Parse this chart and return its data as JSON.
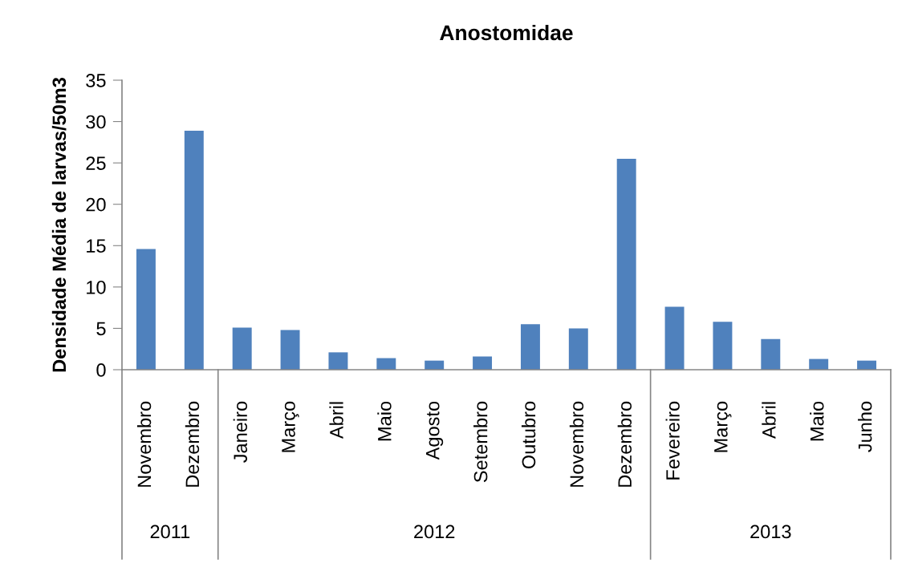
{
  "chart_data": {
    "type": "bar",
    "title": "Anostomidae",
    "ylabel": "Densidade Média de larvas/50m3",
    "categories": [
      "Novembro",
      "Dezembro",
      "Janeiro",
      "Março",
      "Abril",
      "Maio",
      "Agosto",
      "Setembro",
      "Outubro",
      "Novembro",
      "Dezembro",
      "Fevereiro",
      "Março",
      "Abril",
      "Maio",
      "Junho"
    ],
    "values": [
      14.6,
      28.9,
      5.1,
      4.8,
      2.1,
      1.4,
      1.1,
      1.6,
      5.5,
      5.0,
      25.5,
      7.6,
      5.8,
      3.7,
      1.3,
      1.1
    ],
    "color": "#4f81bd",
    "ylim": [
      0,
      35
    ],
    "yticks": [
      0,
      5,
      10,
      15,
      20,
      25,
      30,
      35
    ],
    "grid": false,
    "annotations": [
      "2011",
      "2012",
      "2013"
    ]
  }
}
